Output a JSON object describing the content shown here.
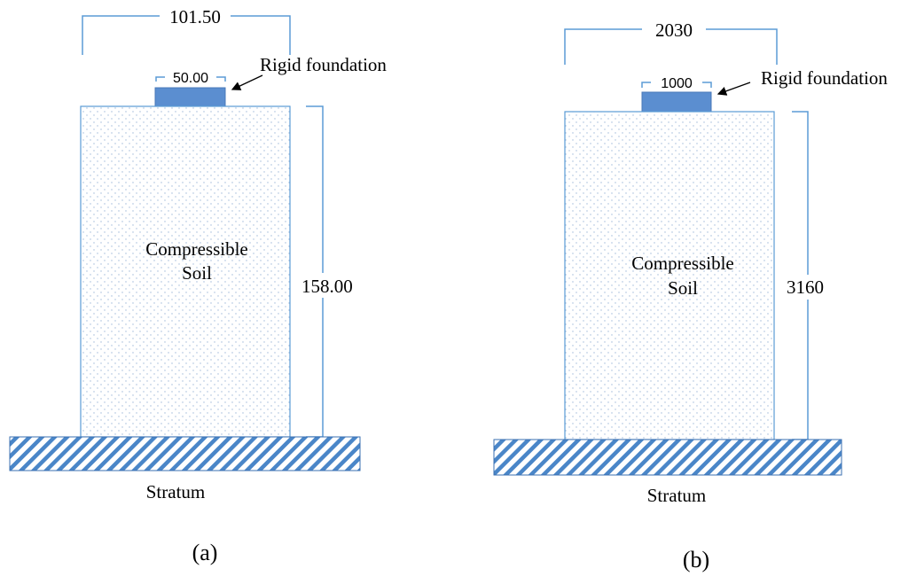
{
  "panels": [
    {
      "id": "a",
      "caption": "(a)",
      "top_width_label": "101.50",
      "foundation_width_label": "50.00",
      "foundation_label": "Rigid foundation",
      "soil_label_line1": "Compressible",
      "soil_label_line2": "Soil",
      "height_label": "158.00",
      "base_label": "Stratum"
    },
    {
      "id": "b",
      "caption": "(b)",
      "top_width_label": "2030",
      "foundation_width_label": "1000",
      "foundation_label": "Rigid foundation",
      "soil_label_line1": "Compressible",
      "soil_label_line2": "Soil",
      "height_label": "3160",
      "base_label": "Stratum"
    }
  ],
  "colors": {
    "dimension_line": "#5b9bd5",
    "foundation_fill": "#5b8ed0",
    "soil_border": "#5b9bd5",
    "soil_dots": "#9fb8d8",
    "hatch": "#4a86c8",
    "text": "#000000"
  }
}
